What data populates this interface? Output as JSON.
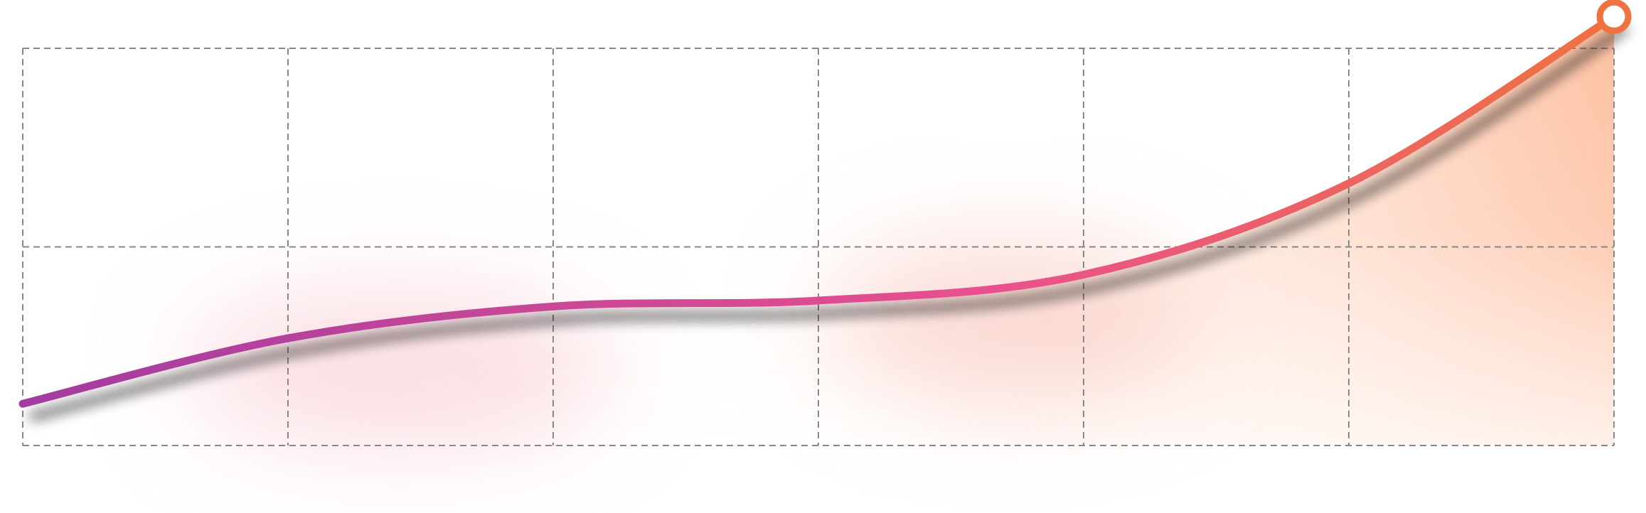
{
  "chart_data": {
    "type": "line",
    "title": "",
    "xlabel": "",
    "ylabel": "",
    "x": [
      0,
      1,
      2,
      3,
      4,
      5,
      6
    ],
    "series": [
      {
        "values": [
          0.21,
          0.54,
          0.7,
          0.73,
          0.86,
          1.32,
          2.16
        ]
      }
    ],
    "xlim": [
      0,
      6
    ],
    "ylim": [
      0,
      2
    ],
    "grid": true,
    "grid_style": "dashed",
    "x_gridlines": 7,
    "y_gridlines": 3,
    "end_marker": "hollow-circle",
    "colors": {
      "line_start": "#a23ca0",
      "line_mid": "#e8508f",
      "line_end": "#ef7240",
      "area_fill": "#fdbfa0",
      "grid": "#888888"
    }
  }
}
